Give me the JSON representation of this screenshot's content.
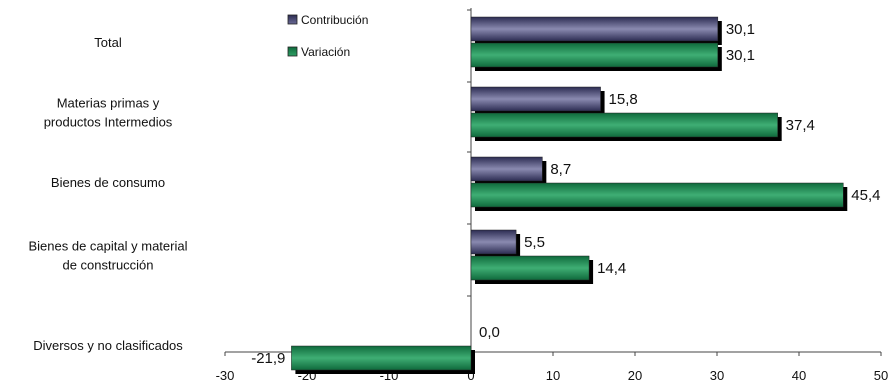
{
  "chart_data": {
    "type": "bar",
    "orientation": "horizontal",
    "categories": [
      [
        "Total"
      ],
      [
        "Materias primas y",
        "productos Intermedios"
      ],
      [
        "Bienes de consumo"
      ],
      [
        "Bienes de capital y material",
        "de construcción"
      ],
      [
        "Diversos y no clasificados"
      ]
    ],
    "series": [
      {
        "name": "Contribución",
        "color": "#4a4a78",
        "values": [
          30.1,
          15.8,
          8.7,
          5.5,
          0.0
        ],
        "labels": [
          "30,1",
          "15,8",
          "8,7",
          "5,5",
          "0,0"
        ]
      },
      {
        "name": "Variación",
        "color": "#1f8a55",
        "values": [
          30.1,
          37.4,
          45.4,
          14.4,
          -21.9
        ],
        "labels": [
          "30,1",
          "37,4",
          "45,4",
          "14,4",
          "-21,9"
        ]
      }
    ],
    "xlim": [
      -30,
      50
    ],
    "xticks": [
      -30,
      -20,
      -10,
      0,
      10,
      20,
      30,
      40,
      50
    ],
    "xtick_labels": [
      "-30",
      "-20",
      "-10",
      "0",
      "10",
      "20",
      "30",
      "40",
      "50"
    ],
    "grid": false,
    "legend_position": "top-left",
    "bar_style": "3d-shadow"
  }
}
